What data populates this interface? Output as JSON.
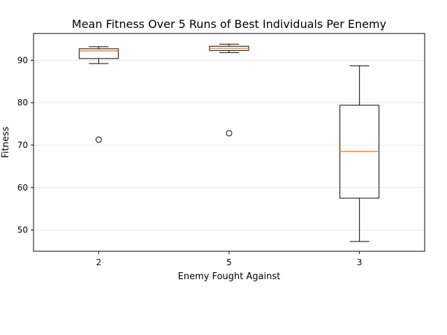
{
  "chart_data": {
    "type": "box",
    "title": "Mean Fitness Over 5 Runs of Best Individuals Per Enemy",
    "xlabel": "Enemy Fought Against",
    "ylabel": "Fitness",
    "categories": [
      "2",
      "5",
      "3"
    ],
    "ylim": [
      45.0,
      96.3
    ],
    "yticks": [
      50,
      60,
      70,
      80,
      90
    ],
    "grid": "y",
    "boxes": [
      {
        "category": "2",
        "whisker_low": 89.2,
        "q1": 90.4,
        "median": 92.2,
        "q3": 92.7,
        "whisker_high": 93.2,
        "outliers": [
          71.3
        ]
      },
      {
        "category": "5",
        "whisker_low": 91.8,
        "q1": 92.3,
        "median": 92.8,
        "q3": 93.3,
        "whisker_high": 93.8,
        "outliers": [
          72.8
        ]
      },
      {
        "category": "3",
        "whisker_low": 47.3,
        "q1": 57.5,
        "median": 68.5,
        "q3": 79.4,
        "whisker_high": 88.7,
        "outliers": []
      }
    ],
    "colors": {
      "box": "#000000",
      "median": "#ff7f0e",
      "grid": "#e6e6e6"
    }
  }
}
